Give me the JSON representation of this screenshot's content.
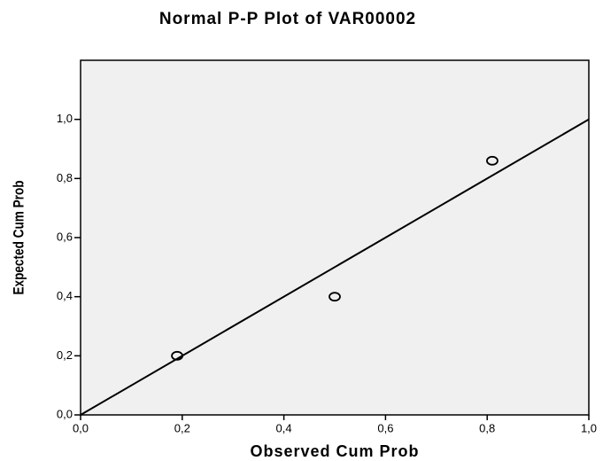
{
  "chart_data": {
    "type": "scatter",
    "title": "Normal P-P Plot of VAR00002",
    "x_label": "Observed Cum Prob",
    "y_label": "Expected Cum Prob",
    "series": [
      {
        "name": "VAR00002",
        "color": "#000000",
        "x": [
          0.19,
          0.5,
          0.81
        ],
        "values": [
          0.2,
          0.4,
          0.86
        ]
      }
    ],
    "reference_line": {
      "x": [
        0,
        1
      ],
      "y": [
        0,
        1
      ],
      "color": "#000000"
    },
    "xlim": [
      0,
      1
    ],
    "ylim": [
      0,
      1.2
    ],
    "xticks": [
      {
        "value": 0,
        "label": "0,0"
      },
      {
        "value": 0.2,
        "label": "0,2"
      },
      {
        "value": 0.4,
        "label": "0,4"
      },
      {
        "value": 0.6,
        "label": "0,6"
      },
      {
        "value": 0.8,
        "label": "0,8"
      },
      {
        "value": 1,
        "label": "1,0"
      }
    ],
    "yticks": [
      {
        "value": 0,
        "label": "0,0"
      },
      {
        "value": 0.2,
        "label": "0,2"
      },
      {
        "value": 0.4,
        "label": "0,4"
      },
      {
        "value": 0.6,
        "label": "0,6"
      },
      {
        "value": 0.8,
        "label": "0,8"
      },
      {
        "value": 1,
        "label": "1,0"
      }
    ],
    "background": "#f0f0f0",
    "grid": false
  }
}
